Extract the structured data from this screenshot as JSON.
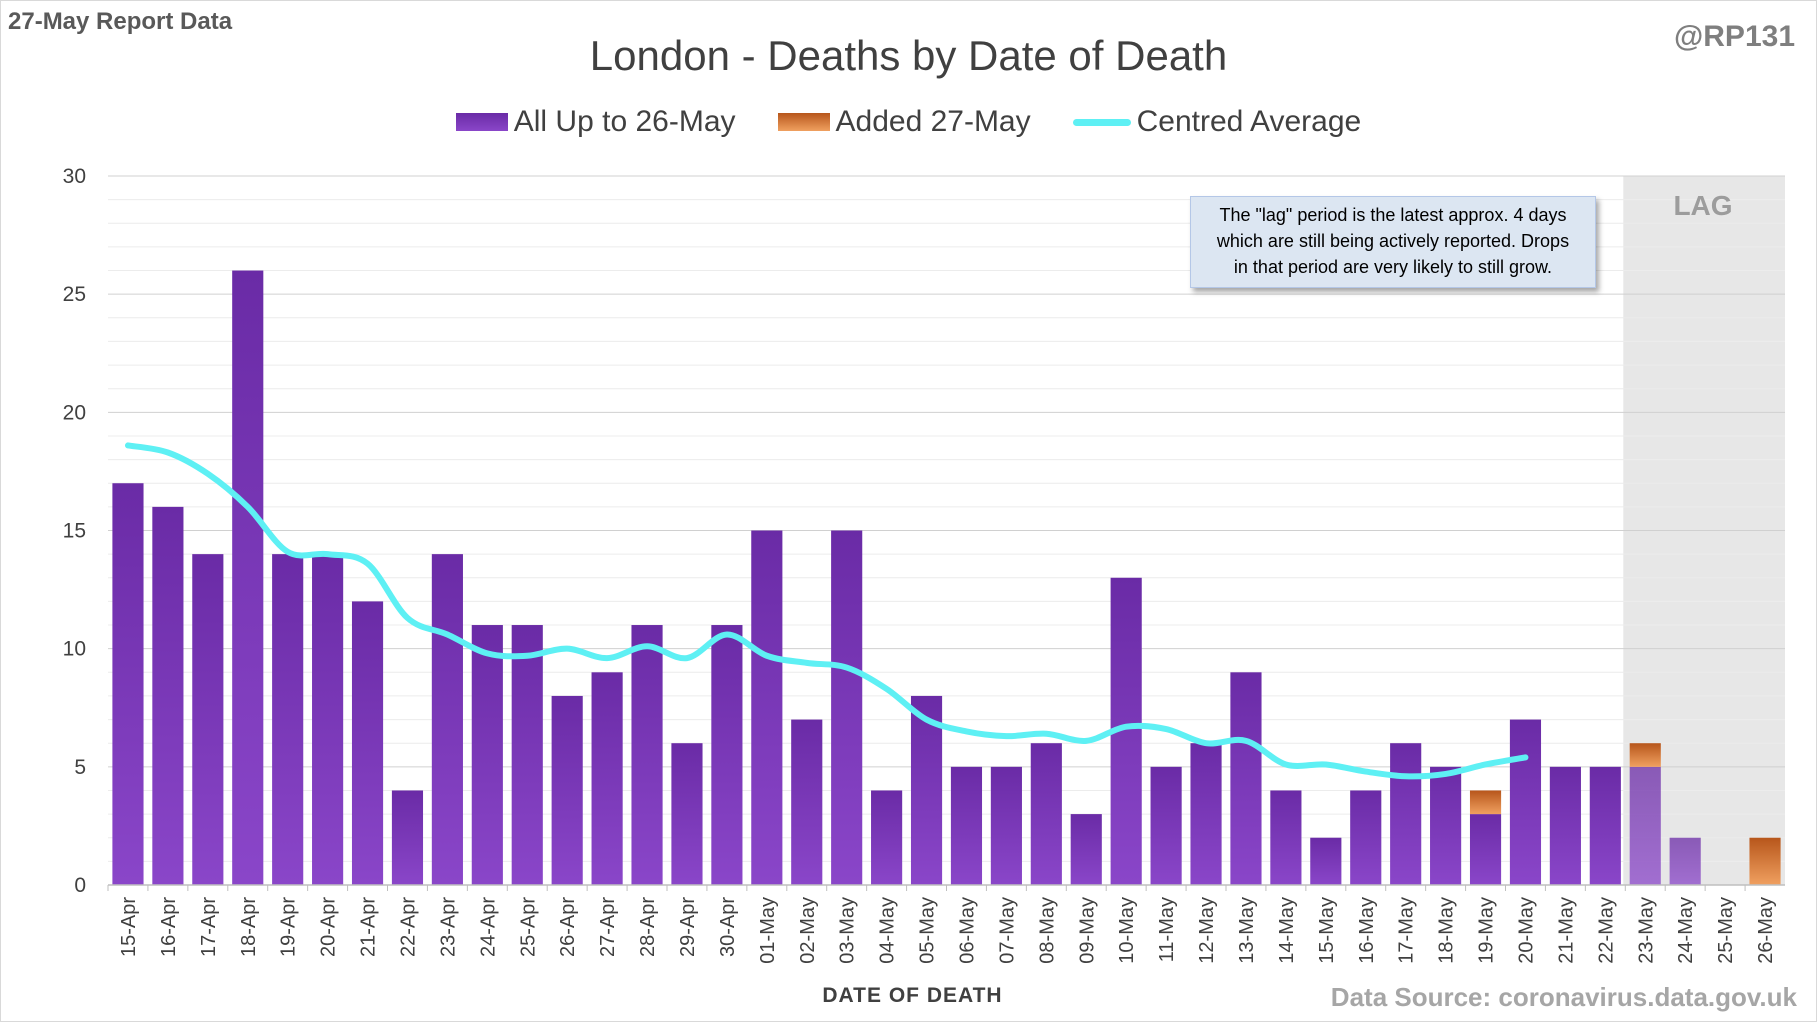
{
  "header": {
    "report_label": "27-May Report Data",
    "handle": "@RP131"
  },
  "annotation": {
    "line1": "The \"lag\" period is the latest approx. 4 days",
    "line2": "which are still being actively reported.  Drops",
    "line3": "in that period are very likely to still grow."
  },
  "lag_label": "LAG",
  "footer": {
    "source": "Data Source: coronavirus.data.gov.uk"
  },
  "colors": {
    "purple_top": "#6a2ba6",
    "purple_bottom": "#8a46c9",
    "orange_top": "#b7561b",
    "orange_bottom": "#f0a060",
    "average_line": "#5ef0f4",
    "lag_shade": "#e7e7e7"
  },
  "chart_data": {
    "type": "bar",
    "title": "London - Deaths by Date of Death",
    "xlabel": "DATE OF DEATH",
    "ylabel": "",
    "ylim": [
      0,
      30
    ],
    "yticks": [
      0,
      5,
      10,
      15,
      20,
      25,
      30
    ],
    "grid": true,
    "legend_position": "top",
    "lag_start_category": "23-May",
    "categories": [
      "15-Apr",
      "16-Apr",
      "17-Apr",
      "18-Apr",
      "19-Apr",
      "20-Apr",
      "21-Apr",
      "22-Apr",
      "23-Apr",
      "24-Apr",
      "25-Apr",
      "26-Apr",
      "27-Apr",
      "28-Apr",
      "29-Apr",
      "30-Apr",
      "01-May",
      "02-May",
      "03-May",
      "04-May",
      "05-May",
      "06-May",
      "07-May",
      "08-May",
      "09-May",
      "10-May",
      "11-May",
      "12-May",
      "13-May",
      "14-May",
      "15-May",
      "16-May",
      "17-May",
      "18-May",
      "19-May",
      "20-May",
      "21-May",
      "22-May",
      "23-May",
      "24-May",
      "25-May",
      "26-May"
    ],
    "series": [
      {
        "name": "All Up to 26-May",
        "kind": "bar",
        "values": [
          17,
          16,
          14,
          26,
          14,
          14,
          12,
          4,
          14,
          11,
          11,
          8,
          9,
          11,
          6,
          11,
          15,
          7,
          15,
          4,
          8,
          5,
          5,
          6,
          3,
          13,
          5,
          6,
          9,
          4,
          2,
          4,
          6,
          5,
          3,
          7,
          5,
          5,
          5,
          2,
          0,
          0
        ]
      },
      {
        "name": "Added 27-May",
        "kind": "bar-stacked",
        "values": [
          0,
          0,
          0,
          0,
          0,
          0,
          0,
          0,
          0,
          0,
          0,
          0,
          0,
          0,
          0,
          0,
          0,
          0,
          0,
          0,
          0,
          0,
          0,
          0,
          0,
          0,
          0,
          0,
          0,
          0,
          0,
          0,
          0,
          0,
          1,
          0,
          0,
          0,
          1,
          0,
          0,
          2
        ]
      },
      {
        "name": "Centred Average",
        "kind": "line",
        "values": [
          18.6,
          18.3,
          17.4,
          16.0,
          14.1,
          14.0,
          13.6,
          11.3,
          10.6,
          9.8,
          9.7,
          10.0,
          9.6,
          10.1,
          9.6,
          10.6,
          9.7,
          9.4,
          9.2,
          8.3,
          7.0,
          6.5,
          6.3,
          6.4,
          6.1,
          6.7,
          6.6,
          6.0,
          6.1,
          5.1,
          5.1,
          4.8,
          4.6,
          4.7,
          5.1,
          5.4,
          null,
          null,
          null,
          null,
          null,
          null
        ]
      }
    ]
  }
}
